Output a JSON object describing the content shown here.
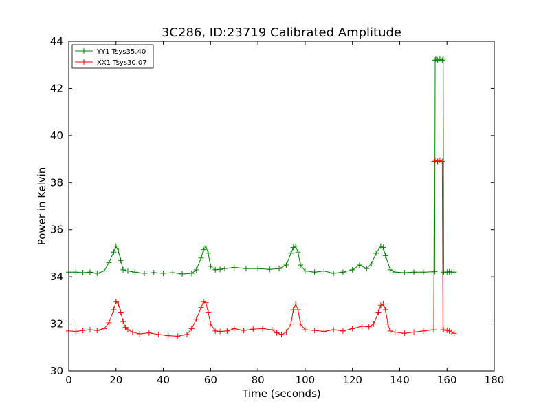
{
  "chart_data": {
    "type": "line",
    "title": "3C286, ID:23719 Calibrated Amplitude",
    "xlabel": "Time (seconds)",
    "ylabel": "Power in Kelvin",
    "xlim": [
      0,
      180
    ],
    "ylim": [
      30,
      44
    ],
    "xticks": [
      0,
      20,
      40,
      60,
      80,
      100,
      120,
      140,
      160,
      180
    ],
    "yticks": [
      30,
      32,
      34,
      36,
      38,
      40,
      42,
      44
    ],
    "xtick_labels": [
      "0",
      "20",
      "40",
      "60",
      "80",
      "100",
      "120",
      "140",
      "160",
      "180"
    ],
    "ytick_labels": [
      "30",
      "32",
      "34",
      "36",
      "38",
      "40",
      "42",
      "44"
    ],
    "grid": false,
    "legend_position": "top-left",
    "marker": "+",
    "series": [
      {
        "name": "YY1 Tsys35.40",
        "color": "#008000",
        "x": [
          0,
          3,
          6,
          9,
          12,
          15,
          17,
          19,
          20,
          21,
          22,
          23,
          25,
          28,
          32,
          36,
          40,
          44,
          48,
          52,
          54,
          56,
          57,
          58,
          59,
          60,
          62,
          64,
          66,
          70,
          75,
          80,
          85,
          89,
          92,
          94,
          95,
          96,
          97,
          98,
          100,
          104,
          108,
          112,
          116,
          120,
          123,
          126,
          128,
          130,
          132,
          133,
          134,
          136,
          138,
          142,
          146,
          150,
          154.8,
          155,
          155.3,
          156,
          157,
          158,
          158.4,
          158.6,
          160,
          161,
          162,
          163
        ],
        "values": [
          34.2,
          34.2,
          34.18,
          34.2,
          34.15,
          34.25,
          34.6,
          35.05,
          35.3,
          35.1,
          34.7,
          34.3,
          34.25,
          34.2,
          34.15,
          34.18,
          34.15,
          34.18,
          34.12,
          34.15,
          34.3,
          34.8,
          35.15,
          35.3,
          35.0,
          34.45,
          34.3,
          34.32,
          34.35,
          34.4,
          34.35,
          34.35,
          34.32,
          34.35,
          34.5,
          35.0,
          35.25,
          35.3,
          35.05,
          34.5,
          34.25,
          34.2,
          34.25,
          34.15,
          34.2,
          34.3,
          34.5,
          34.35,
          34.55,
          35.0,
          35.3,
          35.25,
          34.9,
          34.3,
          34.2,
          34.18,
          34.2,
          34.2,
          34.22,
          43.2,
          43.25,
          43.2,
          43.25,
          43.2,
          43.25,
          34.2,
          34.2,
          34.22,
          34.2,
          34.2
        ]
      },
      {
        "name": "XX1 Tsys30.07",
        "color": "#ff0000",
        "x": [
          0,
          3,
          6,
          9,
          12,
          15,
          17,
          19,
          20,
          21,
          22,
          23,
          24,
          25,
          27,
          30,
          34,
          38,
          42,
          46,
          50,
          52,
          54,
          56,
          57,
          58,
          59,
          60,
          62,
          64,
          67,
          70,
          74,
          78,
          82,
          86,
          88,
          90,
          92,
          94,
          95,
          96,
          97,
          98,
          100,
          104,
          108,
          112,
          116,
          120,
          124,
          127,
          129,
          131,
          132,
          133,
          134,
          135,
          136,
          138,
          142,
          146,
          150,
          154.4,
          154.6,
          155,
          156,
          157,
          158,
          158.3,
          158.5,
          160,
          161,
          162,
          163
        ],
        "values": [
          31.7,
          31.68,
          31.72,
          31.75,
          31.72,
          31.8,
          32.05,
          32.6,
          32.95,
          32.85,
          32.5,
          32.1,
          31.85,
          31.75,
          31.65,
          31.58,
          31.62,
          31.55,
          31.5,
          31.48,
          31.55,
          31.8,
          32.2,
          32.7,
          32.95,
          32.9,
          32.5,
          32.0,
          31.7,
          31.68,
          31.7,
          31.8,
          31.72,
          31.78,
          31.8,
          31.75,
          31.62,
          31.55,
          31.65,
          32.0,
          32.6,
          32.85,
          32.6,
          32.0,
          31.75,
          31.72,
          31.68,
          31.75,
          31.7,
          31.8,
          31.9,
          31.88,
          32.0,
          32.5,
          32.8,
          32.85,
          32.6,
          32.0,
          31.7,
          31.65,
          31.6,
          31.65,
          31.7,
          31.75,
          38.9,
          38.95,
          38.9,
          38.95,
          38.9,
          31.75,
          31.75,
          31.72,
          31.7,
          31.65,
          31.6
        ]
      }
    ]
  }
}
